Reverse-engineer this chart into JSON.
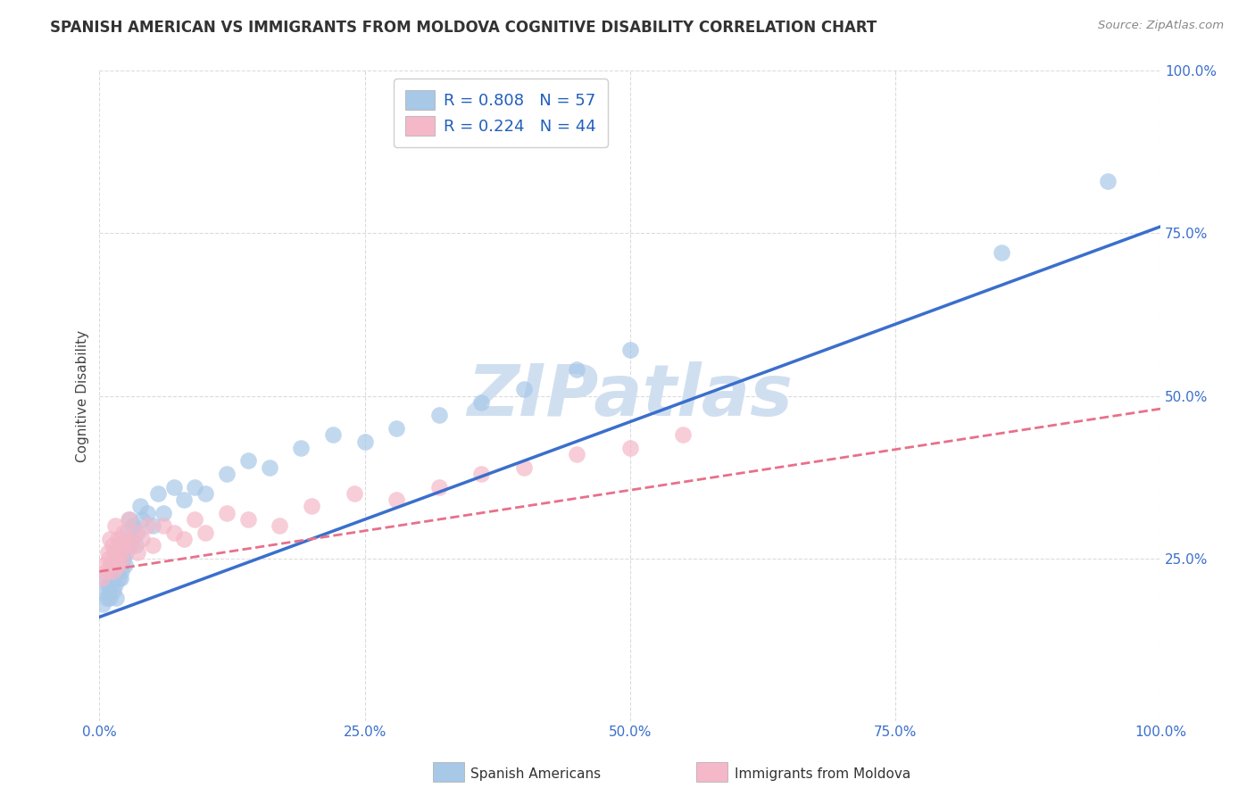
{
  "title": "SPANISH AMERICAN VS IMMIGRANTS FROM MOLDOVA COGNITIVE DISABILITY CORRELATION CHART",
  "source": "Source: ZipAtlas.com",
  "ylabel": "Cognitive Disability",
  "xlabel": "",
  "legend_label1": "Spanish Americans",
  "legend_label2": "Immigrants from Moldova",
  "R1": 0.808,
  "N1": 57,
  "R2": 0.224,
  "N2": 44,
  "color1": "#a8c8e8",
  "color2": "#f4b8c8",
  "line_color1": "#3a6fcc",
  "line_color2": "#e8708a",
  "watermark_color": "#d0dff0",
  "background": "#ffffff",
  "xlim": [
    0,
    1.0
  ],
  "ylim": [
    0,
    1.0
  ],
  "xticks": [
    0.0,
    0.25,
    0.5,
    0.75,
    1.0
  ],
  "yticks": [
    0.25,
    0.5,
    0.75,
    1.0
  ],
  "grid_color": "#cccccc",
  "blue_x": [
    0.003,
    0.005,
    0.006,
    0.007,
    0.008,
    0.009,
    0.01,
    0.01,
    0.011,
    0.012,
    0.013,
    0.014,
    0.015,
    0.015,
    0.016,
    0.017,
    0.018,
    0.018,
    0.019,
    0.02,
    0.02,
    0.021,
    0.022,
    0.023,
    0.024,
    0.025,
    0.026,
    0.027,
    0.028,
    0.03,
    0.032,
    0.034,
    0.036,
    0.038,
    0.04,
    0.045,
    0.05,
    0.055,
    0.06,
    0.07,
    0.08,
    0.09,
    0.1,
    0.12,
    0.14,
    0.16,
    0.19,
    0.22,
    0.25,
    0.28,
    0.32,
    0.36,
    0.4,
    0.45,
    0.5,
    0.85,
    0.95
  ],
  "blue_y": [
    0.18,
    0.2,
    0.22,
    0.19,
    0.21,
    0.2,
    0.23,
    0.19,
    0.21,
    0.22,
    0.2,
    0.24,
    0.21,
    0.26,
    0.19,
    0.23,
    0.25,
    0.22,
    0.24,
    0.22,
    0.28,
    0.23,
    0.25,
    0.27,
    0.24,
    0.26,
    0.29,
    0.27,
    0.31,
    0.28,
    0.3,
    0.27,
    0.29,
    0.33,
    0.31,
    0.32,
    0.3,
    0.35,
    0.32,
    0.36,
    0.34,
    0.36,
    0.35,
    0.38,
    0.4,
    0.39,
    0.42,
    0.44,
    0.43,
    0.45,
    0.47,
    0.49,
    0.51,
    0.54,
    0.57,
    0.72,
    0.83
  ],
  "pink_x": [
    0.002,
    0.004,
    0.006,
    0.008,
    0.009,
    0.01,
    0.011,
    0.012,
    0.013,
    0.014,
    0.015,
    0.016,
    0.017,
    0.018,
    0.019,
    0.02,
    0.021,
    0.022,
    0.023,
    0.025,
    0.027,
    0.03,
    0.033,
    0.036,
    0.04,
    0.045,
    0.05,
    0.06,
    0.07,
    0.08,
    0.09,
    0.1,
    0.12,
    0.14,
    0.17,
    0.2,
    0.24,
    0.28,
    0.32,
    0.36,
    0.4,
    0.45,
    0.5,
    0.55
  ],
  "pink_y": [
    0.22,
    0.24,
    0.23,
    0.26,
    0.25,
    0.28,
    0.24,
    0.27,
    0.23,
    0.26,
    0.3,
    0.25,
    0.28,
    0.24,
    0.27,
    0.26,
    0.25,
    0.29,
    0.27,
    0.28,
    0.31,
    0.27,
    0.29,
    0.26,
    0.28,
    0.3,
    0.27,
    0.3,
    0.29,
    0.28,
    0.31,
    0.29,
    0.32,
    0.31,
    0.3,
    0.33,
    0.35,
    0.34,
    0.36,
    0.38,
    0.39,
    0.41,
    0.42,
    0.44
  ],
  "blue_line_x": [
    0.0,
    1.0
  ],
  "blue_line_y": [
    0.16,
    0.76
  ],
  "pink_line_x": [
    0.0,
    1.0
  ],
  "pink_line_y": [
    0.23,
    0.48
  ]
}
